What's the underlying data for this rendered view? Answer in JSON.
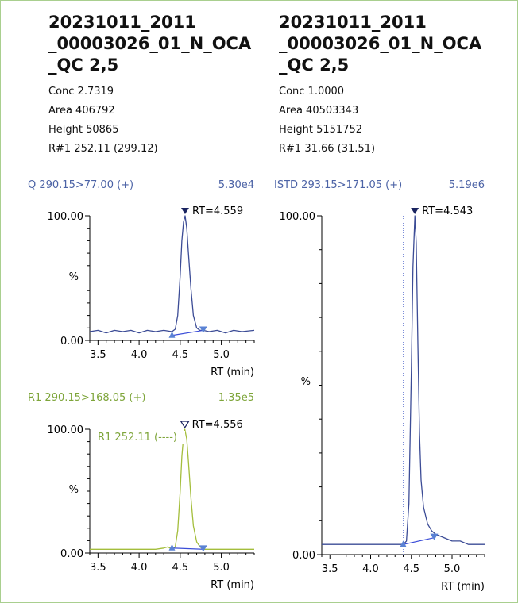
{
  "colors": {
    "frame_border": "#a9cf8f",
    "quant_trace": "#3c4c96",
    "qualifier_trace": "#a4be3c",
    "baseline": "#3b4dd8",
    "marker_blue": "#5a82d4",
    "rt_line": "#7d8ed8",
    "quant_label": "#4c63a6",
    "qual_label": "#7ea53a"
  },
  "panels": [
    {
      "title_lines": [
        "20231011_2011",
        "_00003026_01_N_OCA",
        "_QC 2,5"
      ],
      "stats": [
        "Conc 2.7319",
        "Area 406792",
        "Height 50865",
        "R#1 252.11 (299.12)"
      ]
    },
    {
      "title_lines": [
        "20231011_2011",
        "_00003026_01_N_OCA",
        "_QC 2,5"
      ],
      "stats": [
        "Conc 1.0000",
        "Area 40503343",
        "Height 5151752",
        "R#1 31.66 (31.51)"
      ]
    }
  ],
  "chart_data": [
    {
      "type": "line",
      "trace_label": "Q 290.15>77.00 (+)",
      "intensity_label": "5.30e4",
      "xlabel": "RT (min)",
      "ylabel": "%",
      "xlim": [
        3.4,
        5.4
      ],
      "ylim": [
        0,
        100
      ],
      "x_ticks": [
        "3.5",
        "4.0",
        "4.5",
        "5.0"
      ],
      "y_ticks": [
        "100.00",
        "0.00"
      ],
      "peak_label": "RT=4.559",
      "peak_rt": 4.559,
      "peak_marker": "filled",
      "integration_start": 4.4,
      "integration_end": 4.78,
      "baseline": [
        [
          4.4,
          4
        ],
        [
          4.78,
          8
        ]
      ],
      "series": [
        {
          "x": [
            3.4,
            3.5,
            3.6,
            3.7,
            3.8,
            3.9,
            4.0,
            4.1,
            4.2,
            4.3,
            4.4,
            4.44,
            4.47,
            4.5,
            4.52,
            4.54,
            4.559,
            4.58,
            4.6,
            4.63,
            4.66,
            4.7,
            4.74,
            4.78,
            4.85,
            4.95,
            5.05,
            5.15,
            5.25,
            5.4
          ],
          "y": [
            7,
            8,
            6,
            8,
            7,
            8,
            6,
            8,
            7,
            8,
            7,
            9,
            20,
            52,
            80,
            95,
            100,
            90,
            70,
            42,
            20,
            10,
            8,
            8,
            7,
            8,
            6,
            8,
            7,
            8
          ]
        }
      ]
    },
    {
      "type": "line",
      "trace_label": "R1 290.15>168.05 (+)",
      "intensity_label": "1.35e5",
      "xlabel": "RT (min)",
      "ylabel": "%",
      "xlim": [
        3.4,
        5.4
      ],
      "ylim": [
        0,
        100
      ],
      "x_ticks": [
        "3.5",
        "4.0",
        "4.5",
        "5.0"
      ],
      "y_ticks": [
        "100.00",
        "0.00"
      ],
      "peak_label": "RT=4.556",
      "peak_rt": 4.556,
      "peak_marker": "hollow",
      "ratio_label": "R1 252.11 (----)",
      "integration_start": 4.4,
      "integration_end": 4.78,
      "baseline": [
        [
          4.4,
          4
        ],
        [
          4.78,
          3
        ]
      ],
      "series": [
        {
          "x": [
            3.4,
            3.5,
            3.6,
            3.7,
            3.8,
            3.9,
            4.0,
            4.1,
            4.2,
            4.3,
            4.35,
            4.4,
            4.44,
            4.47,
            4.5,
            4.52,
            4.54,
            4.556,
            4.58,
            4.6,
            4.63,
            4.66,
            4.7,
            4.74,
            4.78,
            4.85,
            4.95,
            5.05,
            5.15,
            5.25,
            5.4
          ],
          "y": [
            3,
            3,
            3,
            3,
            3,
            3,
            3,
            3,
            3,
            4,
            5,
            3,
            5,
            18,
            50,
            78,
            94,
            100,
            92,
            74,
            45,
            22,
            9,
            5,
            3,
            3,
            3,
            3,
            3,
            3,
            3
          ]
        }
      ]
    },
    {
      "type": "line",
      "trace_label": "ISTD 293.15>171.05 (+)",
      "intensity_label": "5.19e6",
      "xlabel": "RT (min)",
      "ylabel": "%",
      "xlim": [
        3.4,
        5.4
      ],
      "ylim": [
        0,
        100
      ],
      "x_ticks": [
        "3.5",
        "4.0",
        "4.5",
        "5.0"
      ],
      "y_ticks": [
        "100.00",
        "0.00"
      ],
      "peak_label": "RT=4.543",
      "peak_rt": 4.543,
      "peak_marker": "filled",
      "integration_start": 4.4,
      "integration_end": 4.78,
      "baseline": [
        [
          4.4,
          3
        ],
        [
          4.78,
          5
        ]
      ],
      "series": [
        {
          "x": [
            3.4,
            3.5,
            3.7,
            3.9,
            4.1,
            4.3,
            4.4,
            4.44,
            4.47,
            4.5,
            4.52,
            4.543,
            4.56,
            4.58,
            4.6,
            4.62,
            4.65,
            4.7,
            4.75,
            4.8,
            4.9,
            5.0,
            5.1,
            5.2,
            5.3,
            5.4
          ],
          "y": [
            3,
            3,
            3,
            3,
            3,
            3,
            3,
            4,
            15,
            55,
            85,
            100,
            92,
            62,
            36,
            22,
            14,
            9,
            7,
            6,
            5,
            4,
            4,
            3,
            3,
            3
          ]
        }
      ]
    }
  ]
}
